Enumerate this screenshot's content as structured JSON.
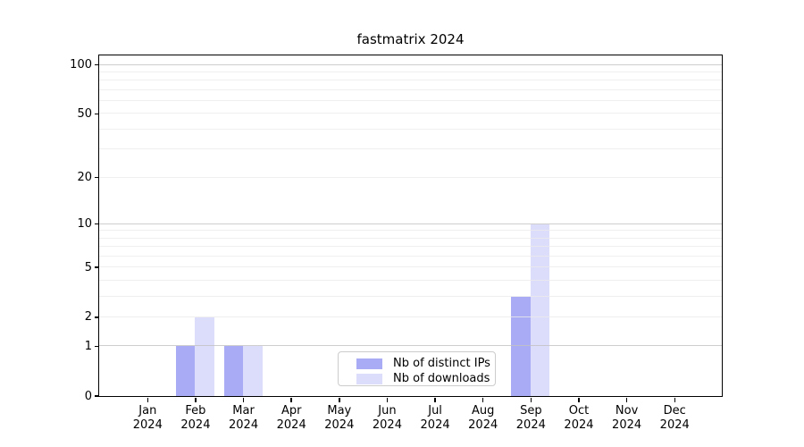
{
  "chart_data": {
    "type": "bar",
    "title": "fastmatrix 2024",
    "xlabel": "",
    "ylabel": "",
    "scale": "log1p",
    "ylim": [
      0,
      113
    ],
    "grid": true,
    "legend_position": "lower-center-inside",
    "categories": [
      "Jan",
      "Feb",
      "Mar",
      "Apr",
      "May",
      "Jun",
      "Jul",
      "Aug",
      "Sep",
      "Oct",
      "Nov",
      "Dec"
    ],
    "category_year": "2024",
    "series": [
      {
        "name": "Nb of distinct IPs",
        "color": "#a9abf5",
        "values": [
          0,
          1,
          1,
          0,
          0,
          0,
          0,
          0,
          3,
          0,
          0,
          0
        ]
      },
      {
        "name": "Nb of downloads",
        "color": "#dcddfb",
        "values": [
          0,
          2,
          1,
          0,
          0,
          0,
          0,
          0,
          10,
          0,
          0,
          0
        ]
      }
    ],
    "y_tick_labels": [
      "100",
      "50",
      "20",
      "10",
      "5",
      "2",
      "1",
      "0"
    ],
    "y_tick_values": [
      100,
      50,
      20,
      10,
      5,
      2,
      1,
      0
    ],
    "grid_major_values": [
      1,
      10,
      100
    ],
    "grid_minor_values": [
      2,
      3,
      4,
      5,
      6,
      7,
      8,
      9,
      20,
      30,
      40,
      50,
      60,
      70,
      80,
      90
    ],
    "colors": {
      "background": "#ffffff",
      "axis": "#000000",
      "grid_major": "#c2c2c2",
      "grid_minor": "#ebebeb",
      "legend_border": "#cccccc",
      "text": "#000000"
    }
  }
}
